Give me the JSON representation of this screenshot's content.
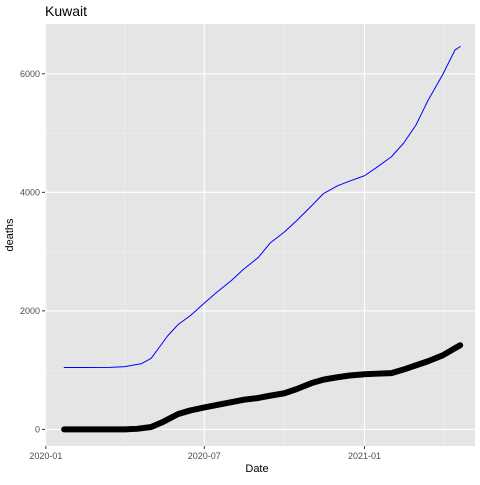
{
  "chart_data": {
    "type": "line",
    "title": "Kuwait",
    "xlabel": "Date",
    "ylabel": "deaths",
    "grid": true,
    "legend": "none",
    "x_ticks": [
      {
        "date": "2020-01-01",
        "label": "2020-01"
      },
      {
        "date": "2020-07-01",
        "label": "2020-07"
      },
      {
        "date": "2021-01-01",
        "label": "2021-01"
      }
    ],
    "y_ticks": [
      0,
      2000,
      4000,
      6000
    ],
    "xlim": [
      "2019-12-31",
      "2021-05-08"
    ],
    "ylim": [
      -280,
      6840
    ],
    "series": [
      {
        "color": "#0000ff",
        "style": "thin",
        "points": [
          [
            "2020-01-22",
            1045
          ],
          [
            "2020-02-15",
            1045
          ],
          [
            "2020-03-15",
            1046
          ],
          [
            "2020-04-01",
            1060
          ],
          [
            "2020-04-20",
            1110
          ],
          [
            "2020-05-01",
            1200
          ],
          [
            "2020-05-10",
            1380
          ],
          [
            "2020-05-20",
            1580
          ],
          [
            "2020-06-01",
            1770
          ],
          [
            "2020-06-15",
            1920
          ],
          [
            "2020-07-01",
            2130
          ],
          [
            "2020-07-15",
            2310
          ],
          [
            "2020-08-01",
            2510
          ],
          [
            "2020-08-15",
            2700
          ],
          [
            "2020-09-01",
            2900
          ],
          [
            "2020-09-15",
            3150
          ],
          [
            "2020-10-01",
            3330
          ],
          [
            "2020-10-15",
            3520
          ],
          [
            "2020-11-01",
            3770
          ],
          [
            "2020-11-15",
            3980
          ],
          [
            "2020-12-01",
            4110
          ],
          [
            "2020-12-15",
            4190
          ],
          [
            "2021-01-01",
            4280
          ],
          [
            "2021-01-15",
            4420
          ],
          [
            "2021-02-01",
            4600
          ],
          [
            "2021-02-15",
            4830
          ],
          [
            "2021-03-01",
            5130
          ],
          [
            "2021-03-15",
            5550
          ],
          [
            "2021-04-01",
            5990
          ],
          [
            "2021-04-15",
            6400
          ],
          [
            "2021-04-21",
            6460
          ]
        ]
      },
      {
        "color": "#000000",
        "style": "thick",
        "points": [
          [
            "2020-01-22",
            0
          ],
          [
            "2020-03-15",
            0
          ],
          [
            "2020-04-01",
            1
          ],
          [
            "2020-04-15",
            10
          ],
          [
            "2020-05-01",
            40
          ],
          [
            "2020-05-15",
            130
          ],
          [
            "2020-06-01",
            260
          ],
          [
            "2020-06-15",
            320
          ],
          [
            "2020-07-01",
            370
          ],
          [
            "2020-07-15",
            410
          ],
          [
            "2020-08-01",
            460
          ],
          [
            "2020-08-15",
            500
          ],
          [
            "2020-09-01",
            530
          ],
          [
            "2020-09-15",
            570
          ],
          [
            "2020-10-01",
            610
          ],
          [
            "2020-10-15",
            680
          ],
          [
            "2020-11-01",
            780
          ],
          [
            "2020-11-15",
            840
          ],
          [
            "2020-12-01",
            880
          ],
          [
            "2020-12-15",
            910
          ],
          [
            "2021-01-01",
            930
          ],
          [
            "2021-01-15",
            940
          ],
          [
            "2021-02-01",
            950
          ],
          [
            "2021-02-15",
            1010
          ],
          [
            "2021-03-01",
            1080
          ],
          [
            "2021-03-15",
            1150
          ],
          [
            "2021-04-01",
            1250
          ],
          [
            "2021-04-15",
            1370
          ],
          [
            "2021-04-21",
            1420
          ]
        ]
      }
    ]
  }
}
